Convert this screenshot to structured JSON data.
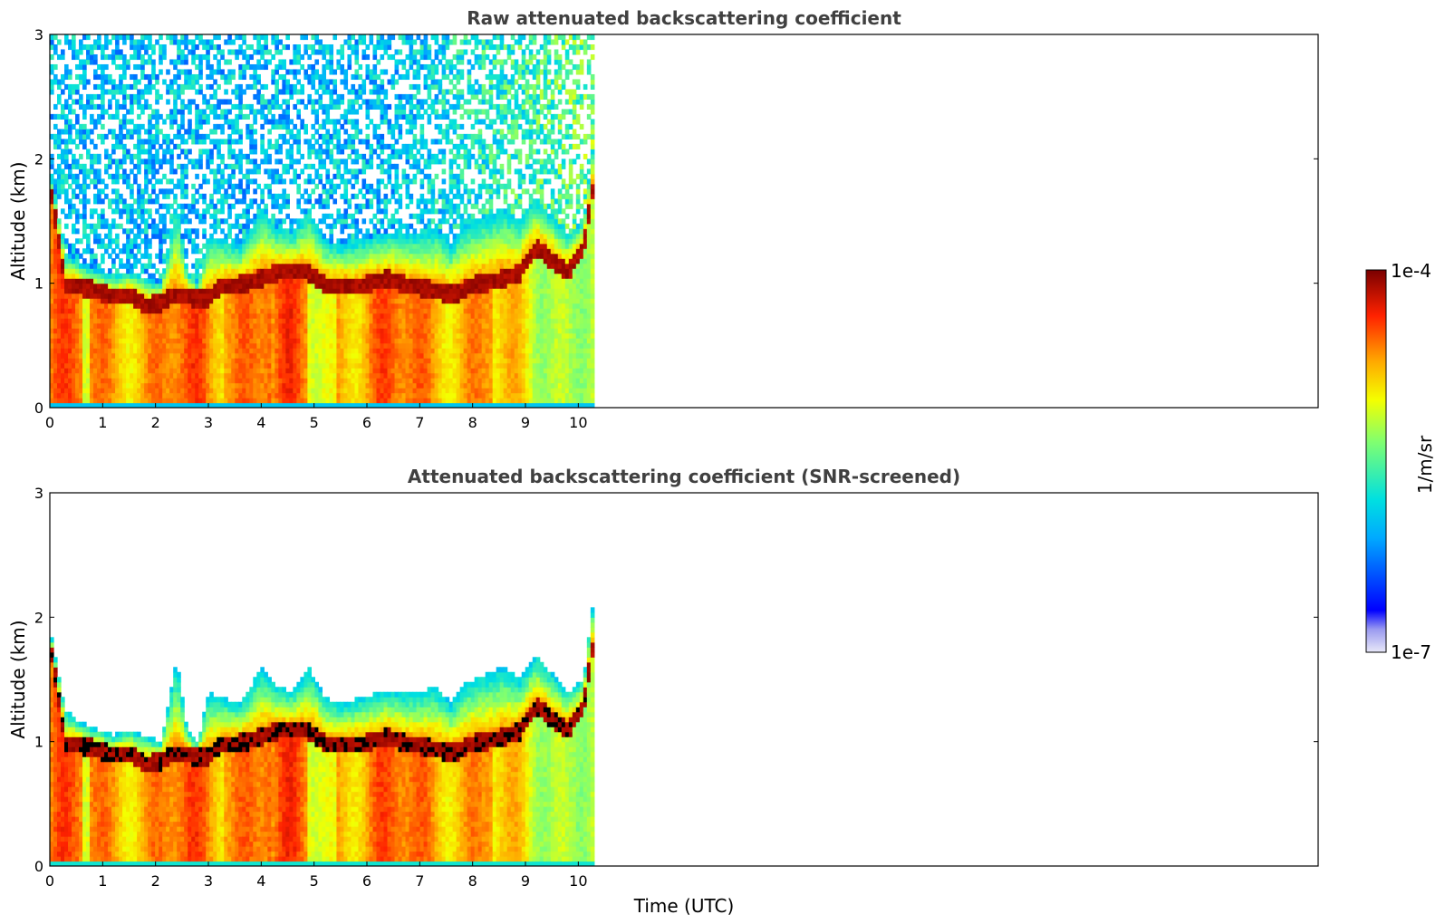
{
  "chart_data": [
    {
      "type": "heatmap",
      "title": "Raw attenuated backscattering coefficient",
      "xlabel": "",
      "ylabel": "Altitude (km)",
      "xlim": [
        0,
        24
      ],
      "ylim": [
        0,
        3
      ],
      "xticks": [
        0,
        1,
        2,
        3,
        4,
        5,
        6,
        7,
        8,
        9,
        10
      ],
      "yticks": [
        0,
        1,
        2,
        3
      ],
      "data_end_time": 10.3,
      "screened": false,
      "profile": {
        "time": [
          0,
          0.3,
          0.6,
          0.9,
          1.2,
          1.5,
          1.8,
          2.1,
          2.4,
          2.6,
          2.8,
          3.0,
          3.3,
          3.6,
          4.0,
          4.3,
          4.6,
          4.9,
          5.2,
          5.5,
          5.8,
          6.1,
          6.4,
          6.7,
          7.0,
          7.3,
          7.6,
          7.8,
          8.0,
          8.3,
          8.6,
          8.9,
          9.2,
          9.5,
          9.8,
          10.1,
          10.3
        ],
        "mixed_layer_top_km": [
          1.8,
          1.0,
          0.98,
          0.95,
          0.9,
          0.92,
          0.83,
          0.86,
          0.92,
          0.92,
          0.88,
          0.9,
          1.0,
          1.0,
          1.05,
          1.1,
          1.12,
          1.1,
          1.0,
          1.0,
          0.98,
          1.02,
          1.05,
          1.0,
          0.98,
          0.95,
          0.92,
          0.95,
          1.0,
          1.02,
          1.05,
          1.1,
          1.3,
          1.2,
          1.1,
          1.3,
          1.85
        ],
        "aerosol_top_km": [
          1.9,
          1.25,
          1.15,
          1.1,
          1.05,
          1.1,
          1.05,
          1.0,
          1.65,
          1.1,
          1.0,
          1.4,
          1.35,
          1.3,
          1.6,
          1.45,
          1.4,
          1.6,
          1.35,
          1.3,
          1.35,
          1.38,
          1.42,
          1.4,
          1.4,
          1.45,
          1.3,
          1.45,
          1.5,
          1.55,
          1.6,
          1.5,
          1.7,
          1.55,
          1.4,
          1.5,
          2.2
        ]
      }
    },
    {
      "type": "heatmap",
      "title": "Attenuated backscattering coefficient (SNR-screened)",
      "xlabel": "Time (UTC)",
      "ylabel": "Altitude (km)",
      "xlim": [
        0,
        24
      ],
      "ylim": [
        0,
        3
      ],
      "xticks": [
        0,
        1,
        2,
        3,
        4,
        5,
        6,
        7,
        8,
        9,
        10
      ],
      "yticks": [
        0,
        1,
        2,
        3
      ],
      "data_end_time": 10.3,
      "screened": true
    }
  ],
  "colorbar": {
    "label": "1/m/sr",
    "max_label": "1e-4",
    "min_label": "1e-7",
    "scale": "log",
    "colormap": "jet"
  }
}
